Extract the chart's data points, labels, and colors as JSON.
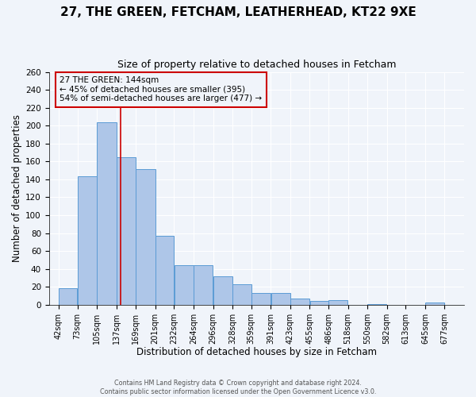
{
  "title": "27, THE GREEN, FETCHAM, LEATHERHEAD, KT22 9XE",
  "subtitle": "Size of property relative to detached houses in Fetcham",
  "xlabel": "Distribution of detached houses by size in Fetcham",
  "ylabel": "Number of detached properties",
  "bar_left_edges": [
    42,
    73,
    105,
    137,
    169,
    201,
    232,
    264,
    296,
    328,
    359,
    391,
    423,
    455,
    486,
    518,
    550,
    582,
    613,
    645
  ],
  "bar_widths": [
    31,
    32,
    32,
    32,
    32,
    31,
    32,
    32,
    32,
    31,
    32,
    32,
    32,
    31,
    32,
    32,
    32,
    31,
    32,
    32
  ],
  "bar_heights": [
    18,
    143,
    204,
    165,
    151,
    77,
    44,
    44,
    32,
    23,
    13,
    13,
    7,
    4,
    5,
    0,
    1,
    0,
    0,
    2
  ],
  "tick_labels": [
    "42sqm",
    "73sqm",
    "105sqm",
    "137sqm",
    "169sqm",
    "201sqm",
    "232sqm",
    "264sqm",
    "296sqm",
    "328sqm",
    "359sqm",
    "391sqm",
    "423sqm",
    "455sqm",
    "486sqm",
    "518sqm",
    "550sqm",
    "582sqm",
    "613sqm",
    "645sqm",
    "677sqm"
  ],
  "ylim": [
    0,
    260
  ],
  "yticks": [
    0,
    20,
    40,
    60,
    80,
    100,
    120,
    140,
    160,
    180,
    200,
    220,
    240,
    260
  ],
  "bar_color": "#aec6e8",
  "bar_edge_color": "#5b9bd5",
  "vline_x": 144,
  "vline_color": "#cc0000",
  "annotation_title": "27 THE GREEN: 144sqm",
  "annotation_line1": "← 45% of detached houses are smaller (395)",
  "annotation_line2": "54% of semi-detached houses are larger (477) →",
  "annotation_box_color": "#cc0000",
  "footer1": "Contains HM Land Registry data © Crown copyright and database right 2024.",
  "footer2": "Contains public sector information licensed under the Open Government Licence v3.0.",
  "background_color": "#f0f4fa",
  "grid_color": "#ffffff",
  "xlim_left": 26,
  "xlim_right": 709,
  "title_fontsize": 11,
  "subtitle_fontsize": 9,
  "xlabel_fontsize": 8.5,
  "ylabel_fontsize": 8.5,
  "tick_fontsize": 7,
  "footer_fontsize": 5.8
}
